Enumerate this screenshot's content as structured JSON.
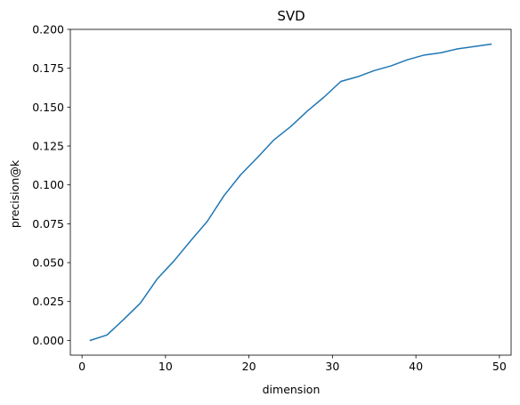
{
  "chart_data": {
    "type": "line",
    "title": "SVD",
    "xlabel": "dimension",
    "ylabel": "precision@k",
    "xlim": [
      -1.4,
      51.4
    ],
    "ylim": [
      -0.0095,
      0.2
    ],
    "x_ticks": [
      0,
      10,
      20,
      30,
      40,
      50
    ],
    "x_tick_labels": [
      "0",
      "10",
      "20",
      "30",
      "40",
      "50"
    ],
    "y_ticks": [
      0.0,
      0.025,
      0.05,
      0.075,
      0.1,
      0.125,
      0.15,
      0.175,
      0.2
    ],
    "y_tick_labels": [
      "0.000",
      "0.025",
      "0.050",
      "0.075",
      "0.100",
      "0.125",
      "0.150",
      "0.175",
      "0.200"
    ],
    "grid": false,
    "series": [
      {
        "color": "#1f77b4",
        "x": [
          1,
          3,
          5,
          7,
          9,
          11,
          13,
          15,
          17,
          19,
          21,
          23,
          25,
          27,
          29,
          31,
          33,
          35,
          37,
          39,
          41,
          43,
          45,
          47,
          49
        ],
        "y": [
          0.0,
          0.0035,
          0.0135,
          0.024,
          0.0395,
          0.051,
          0.064,
          0.0765,
          0.093,
          0.1065,
          0.1175,
          0.129,
          0.1375,
          0.1475,
          0.1565,
          0.1665,
          0.1695,
          0.1735,
          0.1765,
          0.1805,
          0.1835,
          0.185,
          0.1875,
          0.189,
          0.1905
        ]
      }
    ]
  }
}
